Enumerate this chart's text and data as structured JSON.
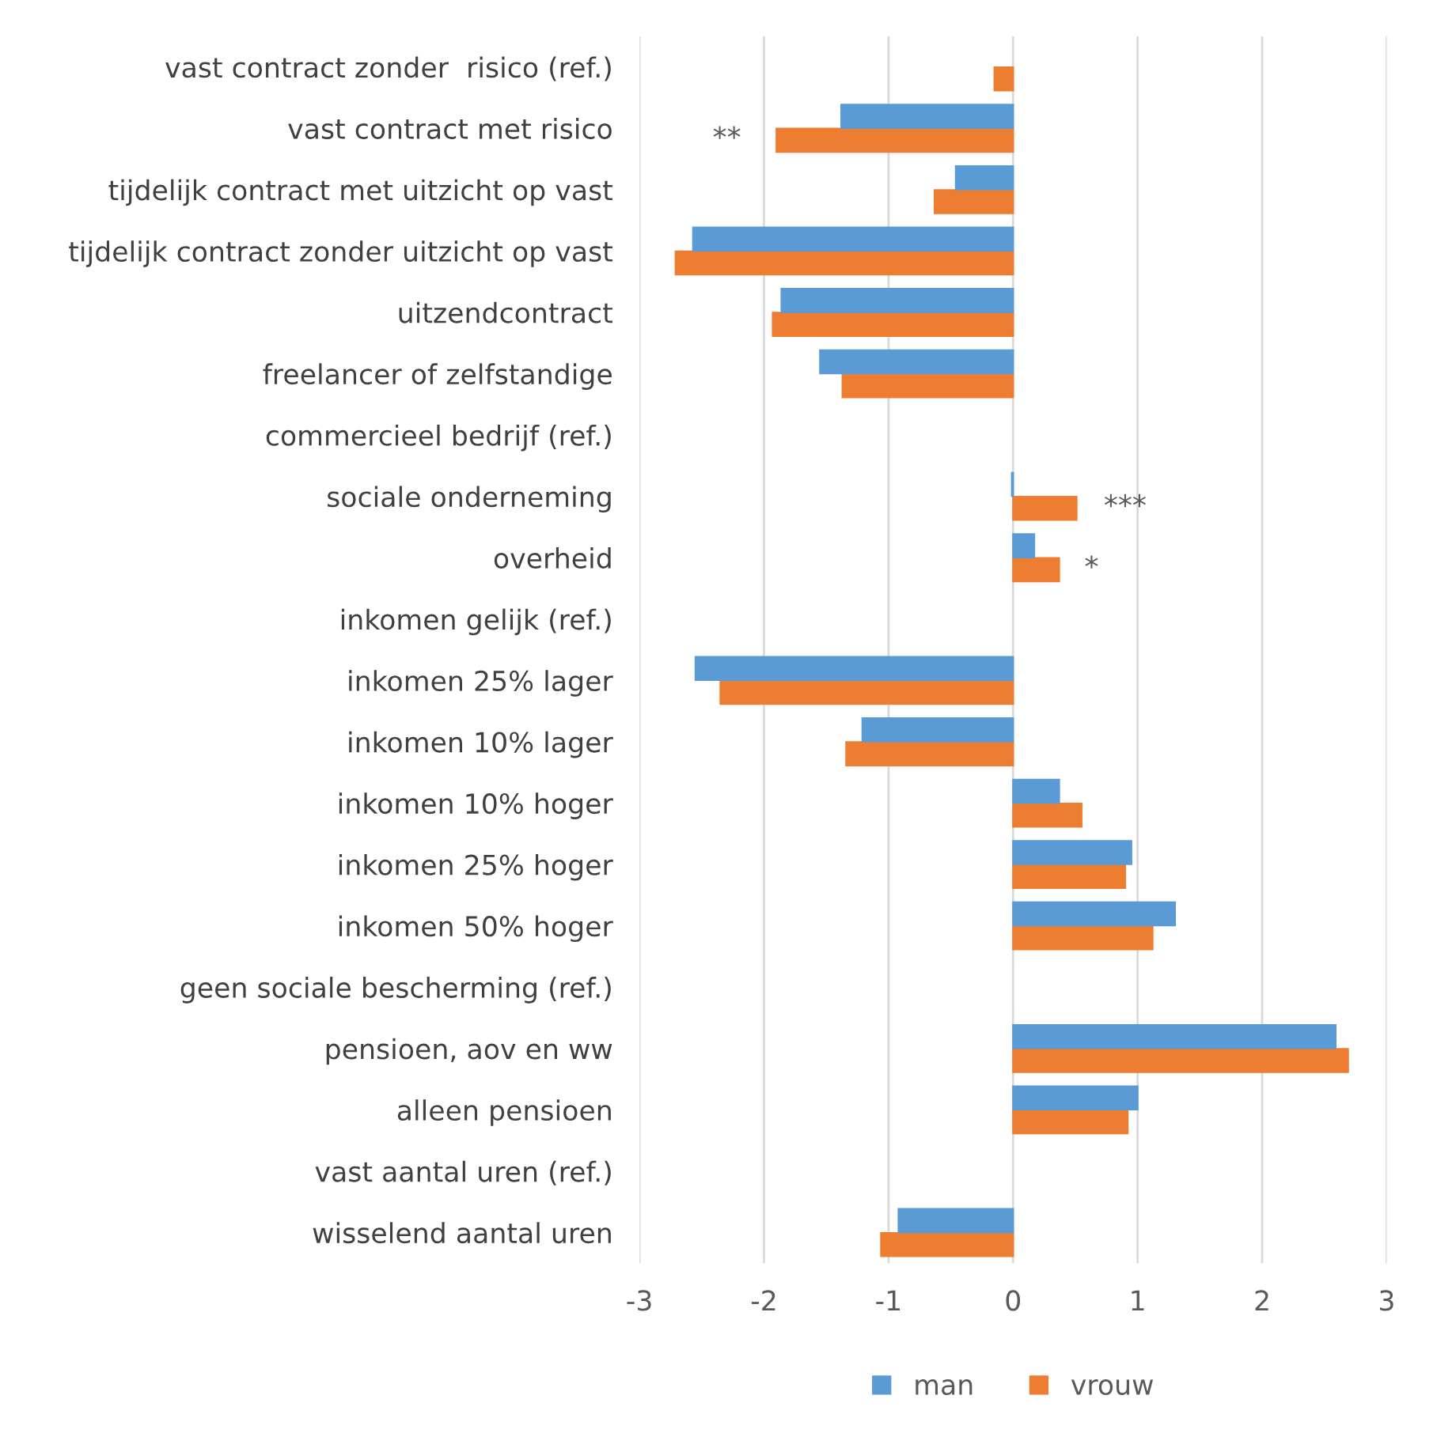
{
  "chart_data": {
    "type": "bar",
    "orientation": "horizontal",
    "categories": [
      "vast contract zonder  risico (ref.)",
      "vast contract met risico",
      "tijdelijk contract met uitzicht op vast",
      "tijdelijk contract zonder uitzicht op vast",
      "uitzendcontract",
      "freelancer of zelfstandige",
      "commercieel bedrijf (ref.)",
      "sociale onderneming",
      "overheid",
      "inkomen gelijk (ref.)",
      "inkomen 25% lager",
      "inkomen 10% lager",
      "inkomen 10% hoger",
      "inkomen 25% hoger",
      "inkomen 50% hoger",
      "geen sociale bescherming (ref.)",
      "pensioen, aov en ww",
      "alleen pensioen",
      "vast aantal uren (ref.)",
      "wisselend aantal uren"
    ],
    "series": [
      {
        "name": "man",
        "color": "#5b9bd5",
        "values": [
          null,
          -1.38,
          -0.46,
          -2.57,
          -1.86,
          -1.55,
          null,
          -0.01,
          0.17,
          null,
          -2.55,
          -1.21,
          0.37,
          0.95,
          1.3,
          null,
          2.59,
          1.0,
          null,
          -0.92
        ]
      },
      {
        "name": "vrouw",
        "color": "#ed7d31",
        "values": [
          -0.15,
          -1.9,
          -0.63,
          -2.71,
          -1.93,
          -1.37,
          null,
          0.51,
          0.37,
          null,
          -2.35,
          -1.34,
          0.55,
          0.9,
          1.12,
          null,
          2.69,
          0.92,
          null,
          -1.06
        ]
      }
    ],
    "xlim": [
      -3,
      3
    ],
    "xticks": [
      -3,
      -2,
      -1,
      0,
      1,
      2,
      3
    ],
    "grid": "x",
    "legend": "bottom",
    "annotations": [
      "**",
      "***",
      "*"
    ]
  }
}
